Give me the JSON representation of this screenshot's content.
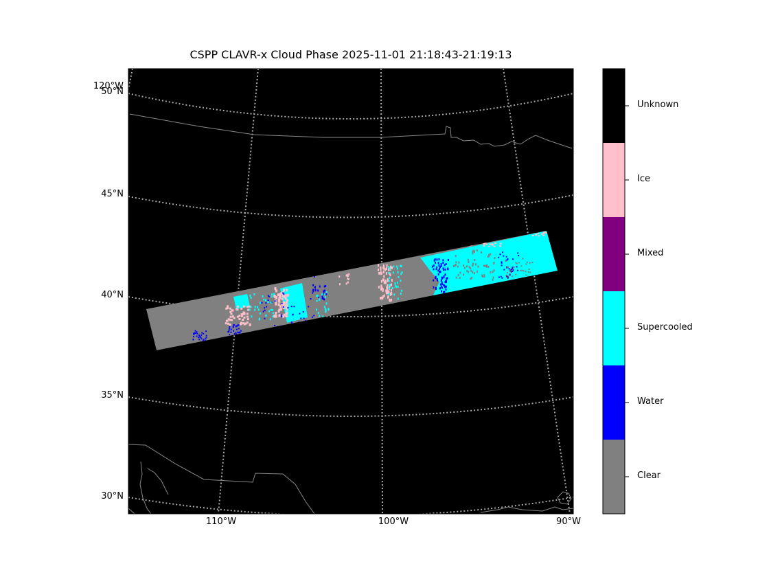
{
  "title": "CSPP CLAVR-x Cloud Phase 2025-11-01 21:18:43-21:19:13",
  "colors": {
    "background": "#000000",
    "gridline": "#aaaaaa",
    "coastline": "#888888",
    "Clear": "#808080",
    "Water": "#0000ff",
    "Supercooled": "#00ffff",
    "Mixed": "#800080",
    "Ice": "#ffc0cb",
    "Unknown": "#000000"
  },
  "map": {
    "latitude_labels": [
      "50°N",
      "45°N",
      "40°N",
      "35°N",
      "30°N"
    ],
    "longitude_labels": [
      "110°W",
      "100°W",
      "90°W"
    ],
    "corner_label": "120°W",
    "gridlines": "dotted"
  },
  "colorbar": {
    "categories": [
      "Clear",
      "Water",
      "Supercooled",
      "Mixed",
      "Ice",
      "Unknown"
    ]
  },
  "chart_data": {
    "type": "heatmap",
    "title": "CSPP CLAVR-x Cloud Phase 2025-11-01 21:18:43-21:19:13",
    "projection": "conic",
    "lat_ticks": [
      50,
      45,
      40,
      35,
      30
    ],
    "lon_ticks": [
      -110,
      -100,
      -90
    ],
    "classes": [
      "Clear",
      "Water",
      "Supercooled",
      "Mixed",
      "Ice",
      "Unknown"
    ],
    "swath_summary": "Granule swath over central US: western and central portion mostly Clear with scattered Ice, Water and Supercooled pixels; eastern portion mostly Supercooled with some Water, Ice and Mixed pixels",
    "grid": true,
    "legend": "colorbar-right"
  }
}
